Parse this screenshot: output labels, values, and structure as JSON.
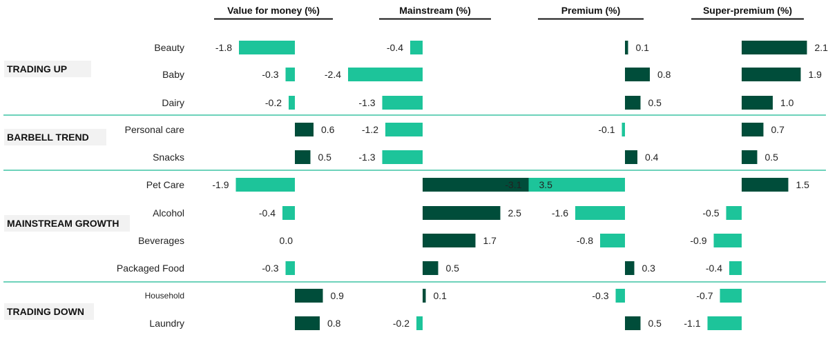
{
  "colors": {
    "positive": "#004d3a",
    "negative": "#1dc49a",
    "divider": "#3cc3a4",
    "header_rule": "#111111",
    "group_bg": "#f2f2f2"
  },
  "chart_data": {
    "type": "bar",
    "orientation": "horizontal",
    "unit": "%",
    "panels": [
      {
        "title": "Value for money (%)",
        "values": [
          -1.8,
          -0.3,
          -0.2,
          0.6,
          0.5,
          -1.9,
          -0.4,
          0.0,
          -0.3,
          0.9,
          0.8
        ]
      },
      {
        "title": "Mainstream (%)",
        "values": [
          -0.4,
          -2.4,
          -1.3,
          -1.2,
          -1.3,
          3.5,
          2.5,
          1.7,
          0.5,
          0.1,
          -0.2
        ]
      },
      {
        "title": "Premium (%)",
        "values": [
          0.1,
          0.8,
          0.5,
          -0.1,
          0.4,
          -3.1,
          -1.6,
          -0.8,
          0.3,
          -0.3,
          0.5
        ]
      },
      {
        "title": "Super-premium (%)",
        "values": [
          2.1,
          1.9,
          1.0,
          0.7,
          0.5,
          1.5,
          -0.5,
          -0.9,
          -0.4,
          -0.7,
          -1.1
        ]
      }
    ],
    "categories": [
      "Beauty",
      "Baby",
      "Dairy",
      "Personal care",
      "Snacks",
      "Pet Care",
      "Alcohol",
      "Beverages",
      "Packaged Food",
      "Household",
      "Laundry"
    ],
    "groups": [
      {
        "label": "TRADING UP",
        "categories": [
          "Beauty",
          "Baby",
          "Dairy"
        ]
      },
      {
        "label": "BARBELL TREND",
        "categories": [
          "Personal care",
          "Snacks"
        ]
      },
      {
        "label": "MAINSTREAM GROWTH",
        "categories": [
          "Pet Care",
          "Alcohol",
          "Beverages",
          "Packaged Food"
        ]
      },
      {
        "label": "TRADING DOWN",
        "categories": [
          "Household",
          "Laundry"
        ]
      }
    ]
  }
}
